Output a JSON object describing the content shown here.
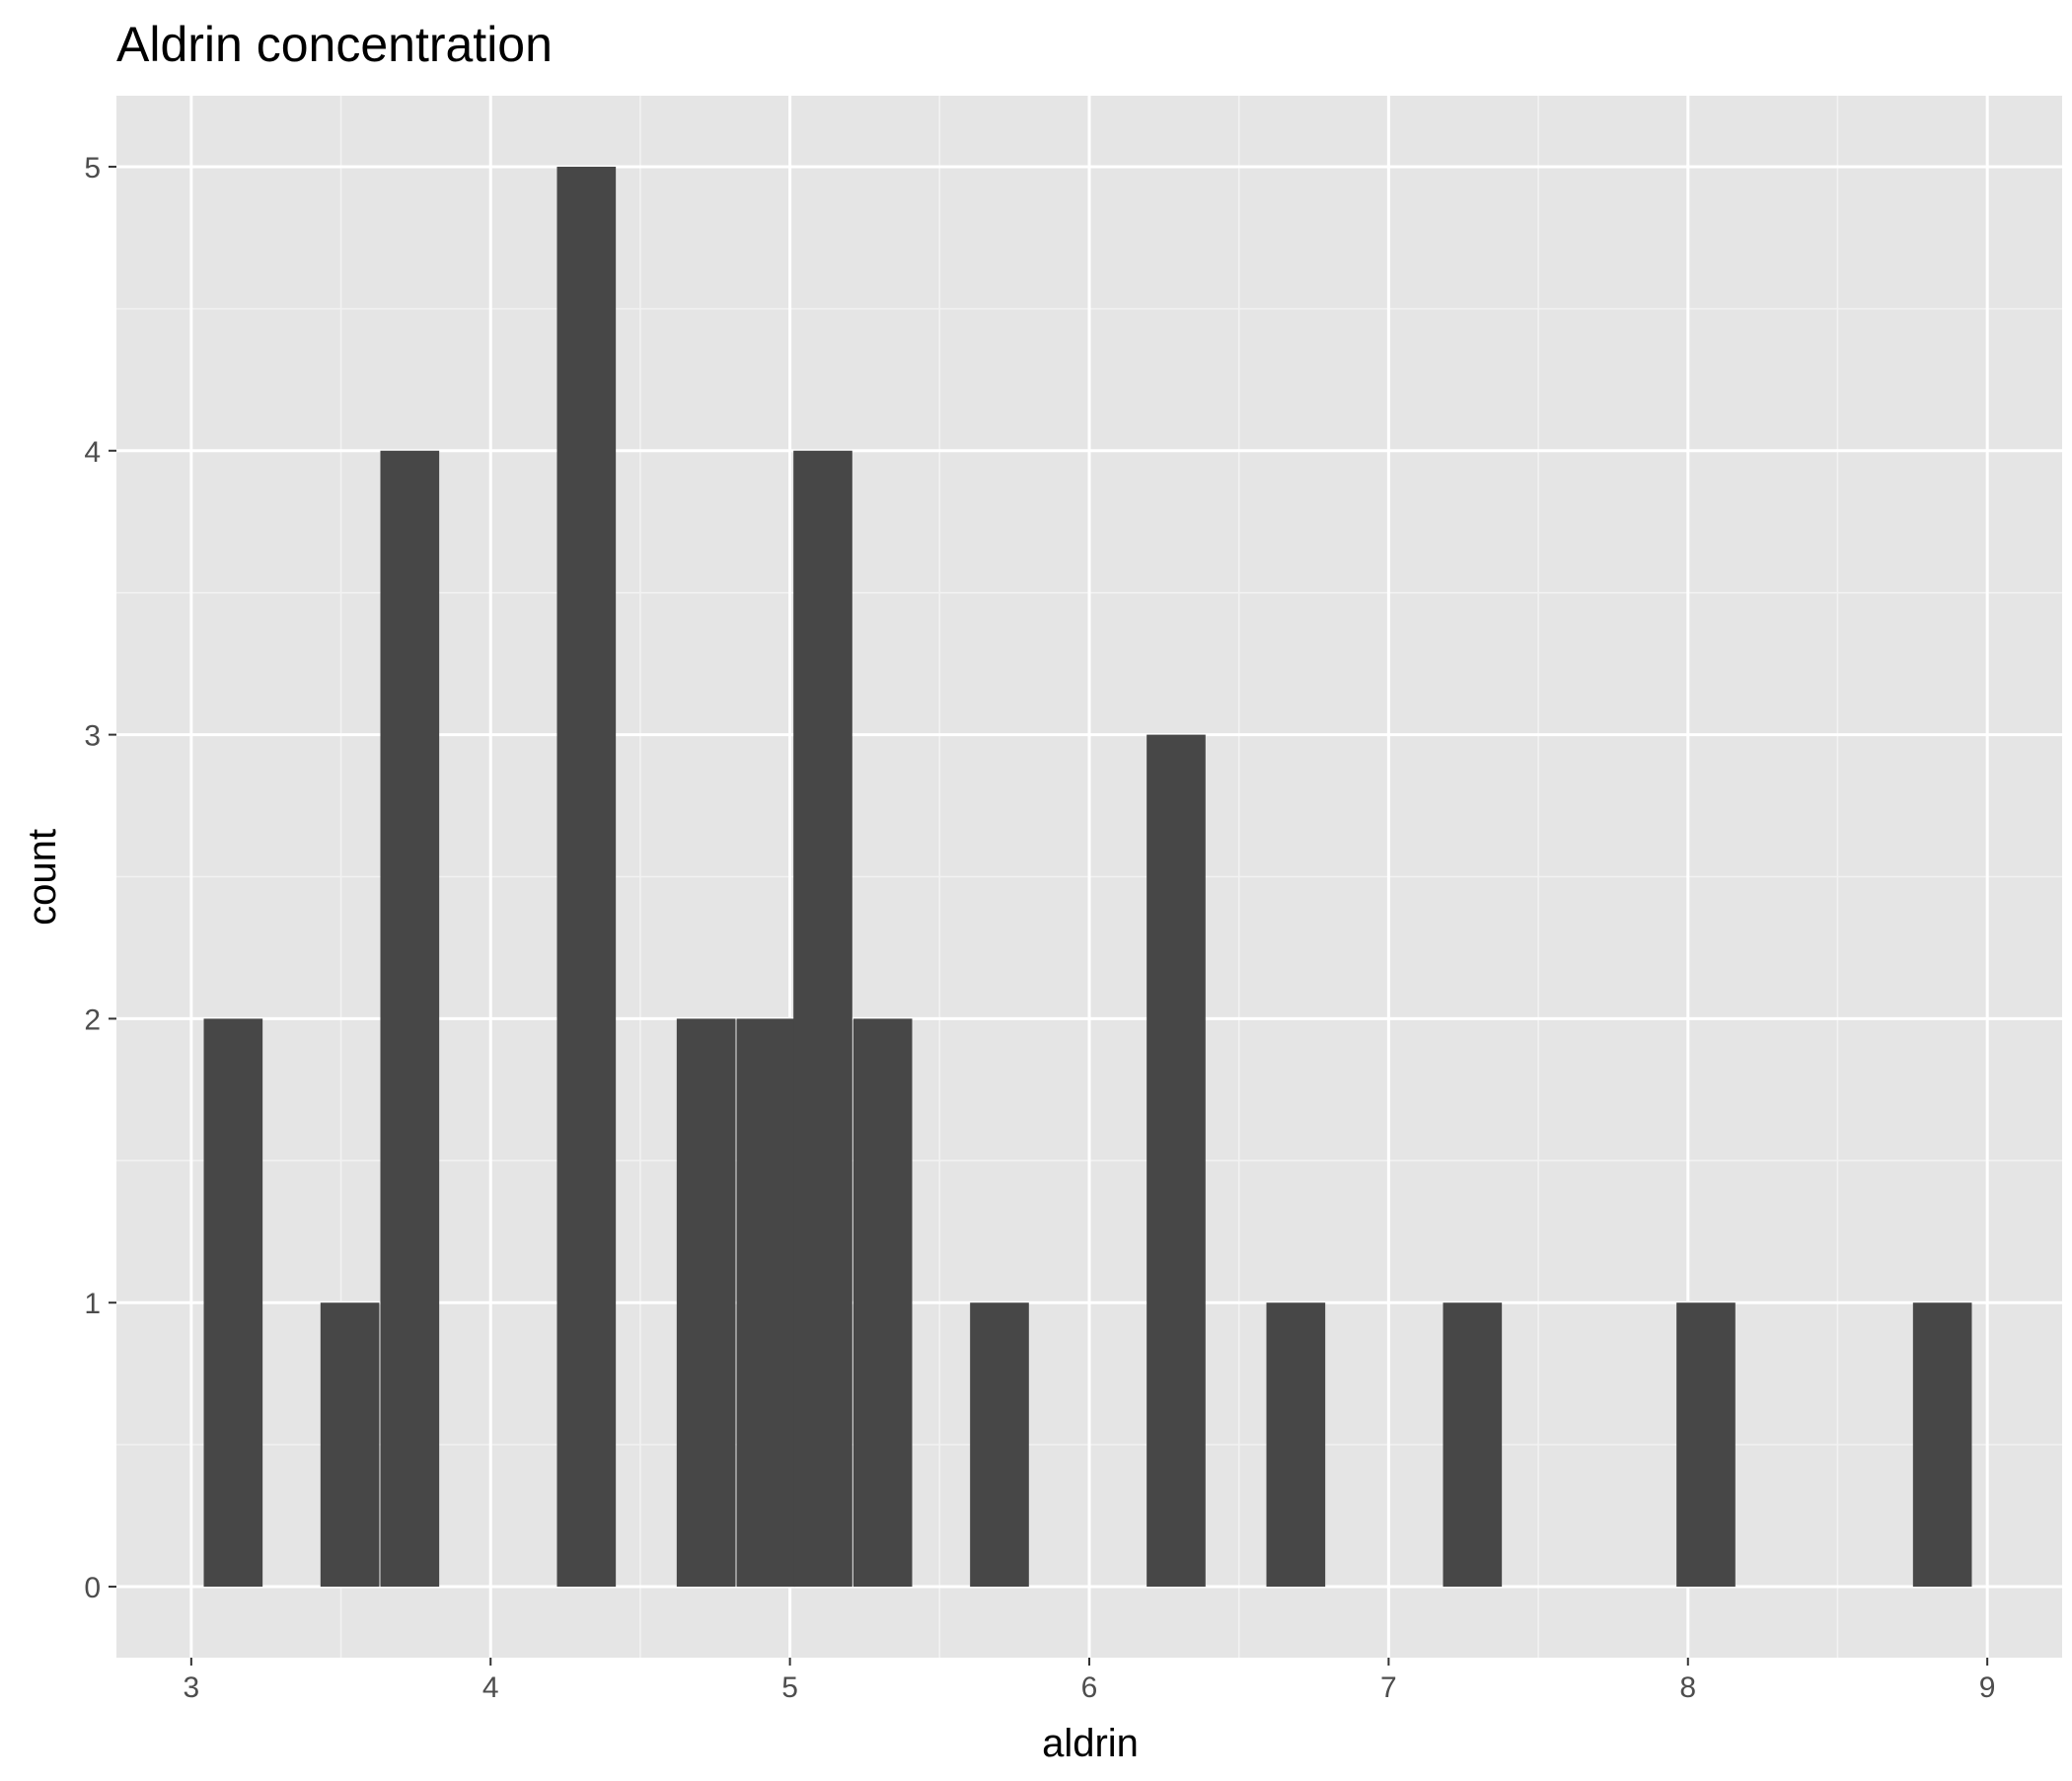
{
  "chart_data": {
    "type": "bar",
    "subtype": "histogram",
    "title": "Aldrin concentration",
    "xlabel": "aldrin",
    "ylabel": "count",
    "xlim": [
      2.75,
      9.25
    ],
    "ylim": [
      -0.25,
      5.25
    ],
    "x_ticks": [
      3,
      4,
      5,
      6,
      7,
      8,
      9
    ],
    "y_ticks": [
      0,
      1,
      2,
      3,
      4,
      5
    ],
    "x_minor_ticks": [
      3.5,
      4.5,
      5.5,
      6.5,
      7.5,
      8.5
    ],
    "y_minor_ticks": [
      0.5,
      1.5,
      2.5,
      3.5,
      4.5
    ],
    "bin_width": 0.1966,
    "bins": [
      {
        "x": 3.14,
        "count": 2
      },
      {
        "x": 3.53,
        "count": 1
      },
      {
        "x": 3.73,
        "count": 4
      },
      {
        "x": 4.32,
        "count": 5
      },
      {
        "x": 4.72,
        "count": 2
      },
      {
        "x": 4.92,
        "count": 2
      },
      {
        "x": 5.11,
        "count": 4
      },
      {
        "x": 5.31,
        "count": 2
      },
      {
        "x": 5.7,
        "count": 1
      },
      {
        "x": 6.29,
        "count": 3
      },
      {
        "x": 6.69,
        "count": 1
      },
      {
        "x": 7.28,
        "count": 1
      },
      {
        "x": 8.06,
        "count": 1
      },
      {
        "x": 8.85,
        "count": 1
      }
    ],
    "grid": true,
    "colors": {
      "panel_background": "#e5e5e5",
      "grid_major": "#ffffff",
      "grid_minor": "#f2f2f2",
      "bar_fill": "#474747",
      "tick_label": "#4d4d4d",
      "tick_mark": "#333333",
      "text": "#000000"
    }
  }
}
